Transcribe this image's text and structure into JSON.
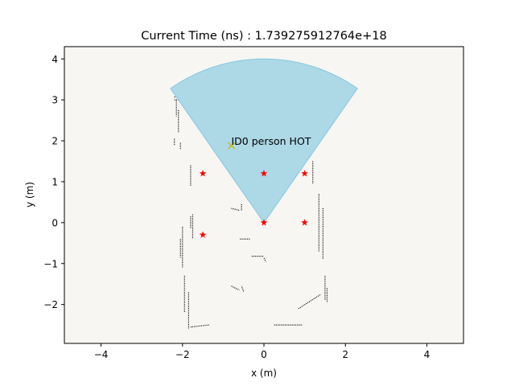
{
  "chart_data": {
    "type": "scatter",
    "title": "Current Time (ns) : 1.739275912764e+18",
    "xlabel": "x (m)",
    "ylabel": "y (m)",
    "xlim": [
      -4.9,
      4.9
    ],
    "ylim": [
      -2.95,
      4.3
    ],
    "xticks": [
      -4,
      -2,
      0,
      2,
      4
    ],
    "yticks": [
      -2,
      -1,
      0,
      1,
      2,
      3,
      4
    ],
    "grid": false,
    "colors": {
      "background": "#f7f6f2",
      "sector_fill": "#add8e6",
      "sector_edge": "#87c7e3",
      "star": "#ff0000",
      "detection": "#c8b400",
      "map": "#000000"
    },
    "sector": {
      "center": [
        0,
        0
      ],
      "radius": 4.0,
      "start_deg": 55,
      "end_deg": 125
    },
    "stars": [
      [
        -1.5,
        1.2
      ],
      [
        0,
        1.2
      ],
      [
        1.0,
        1.2
      ],
      [
        0,
        0
      ],
      [
        1.0,
        0
      ],
      [
        -1.5,
        -0.3
      ]
    ],
    "detection": {
      "x": -0.8,
      "y": 1.88,
      "label": "ID0 person HOT"
    },
    "map_walls": [
      [
        [
          -2.2,
          3.0
        ],
        [
          -1.0,
          3.0
        ]
      ],
      [
        [
          -2.2,
          3.07
        ],
        [
          -0.9,
          3.07
        ]
      ],
      [
        [
          -0.7,
          2.9
        ],
        [
          0.4,
          2.9
        ]
      ],
      [
        [
          0.35,
          2.95
        ],
        [
          1.1,
          2.95
        ]
      ],
      [
        [
          0.9,
          3.05
        ],
        [
          1.15,
          3.05
        ]
      ],
      [
        [
          -2.15,
          3.0
        ],
        [
          -2.15,
          2.6
        ]
      ],
      [
        [
          -2.1,
          2.75
        ],
        [
          -2.1,
          2.2
        ]
      ],
      [
        [
          -2.2,
          2.05
        ],
        [
          -2.2,
          1.9
        ]
      ],
      [
        [
          -2.05,
          1.95
        ],
        [
          -2.05,
          1.8
        ]
      ],
      [
        [
          -1.8,
          1.4
        ],
        [
          -1.8,
          0.9
        ]
      ],
      [
        [
          1.1,
          2.9
        ],
        [
          1.1,
          1.7
        ]
      ],
      [
        [
          1.2,
          1.5
        ],
        [
          1.2,
          0.95
        ]
      ],
      [
        [
          -0.8,
          0.35
        ],
        [
          -0.6,
          0.3
        ]
      ],
      [
        [
          -0.55,
          0.45
        ],
        [
          -0.55,
          0.3
        ]
      ],
      [
        [
          -1.75,
          0.2
        ],
        [
          -1.75,
          -0.4
        ]
      ],
      [
        [
          -1.8,
          0.15
        ],
        [
          -1.8,
          -0.15
        ]
      ],
      [
        [
          1.35,
          0.7
        ],
        [
          1.35,
          -0.7
        ]
      ],
      [
        [
          1.45,
          0.35
        ],
        [
          1.45,
          -0.9
        ]
      ],
      [
        [
          -2.0,
          -0.1
        ],
        [
          -2.0,
          -1.1
        ]
      ],
      [
        [
          -2.05,
          -0.4
        ],
        [
          -2.05,
          -0.85
        ]
      ],
      [
        [
          -0.3,
          -0.82
        ],
        [
          0.0,
          -0.82
        ]
      ],
      [
        [
          0.0,
          -0.87
        ],
        [
          0.05,
          -0.95
        ]
      ],
      [
        [
          -0.35,
          -0.4
        ],
        [
          -0.6,
          -0.4
        ]
      ],
      [
        [
          -1.95,
          -1.3
        ],
        [
          -1.95,
          -2.2
        ]
      ],
      [
        [
          -1.85,
          -1.7
        ],
        [
          -1.85,
          -2.6
        ]
      ],
      [
        [
          -1.8,
          -2.55
        ],
        [
          -1.35,
          -2.5
        ]
      ],
      [
        [
          -0.8,
          -1.55
        ],
        [
          -0.6,
          -1.65
        ]
      ],
      [
        [
          -0.5,
          -1.68
        ],
        [
          -0.55,
          -1.55
        ]
      ],
      [
        [
          0.85,
          -2.1
        ],
        [
          1.4,
          -1.75
        ]
      ],
      [
        [
          1.5,
          -1.3
        ],
        [
          1.5,
          -1.9
        ]
      ],
      [
        [
          1.55,
          -1.6
        ],
        [
          1.55,
          -1.95
        ]
      ],
      [
        [
          0.25,
          -2.5
        ],
        [
          0.95,
          -2.5
        ]
      ]
    ]
  }
}
